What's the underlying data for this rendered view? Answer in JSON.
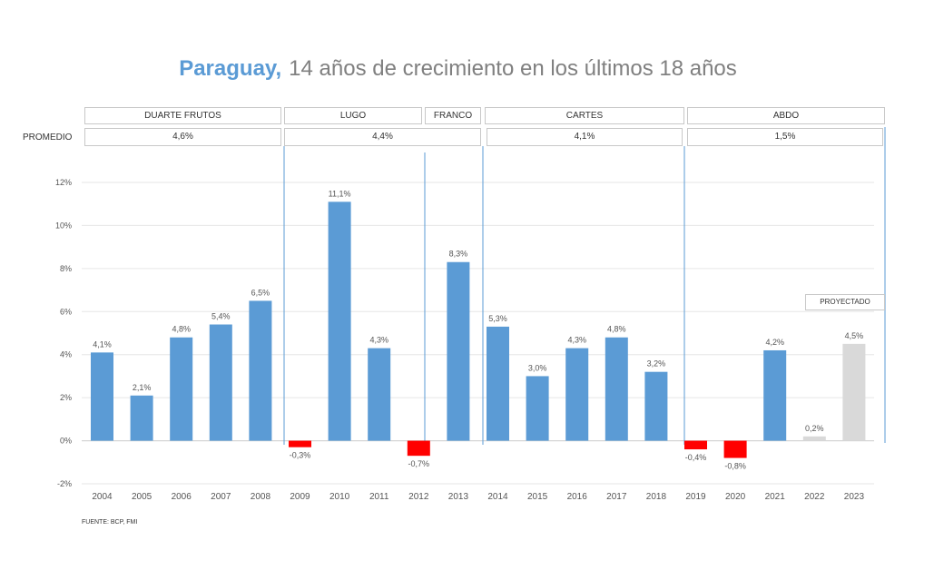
{
  "title": {
    "country": "Paraguay,",
    "rest": "14 años de crecimiento en los últimos 18 años"
  },
  "promedio_label": "PROMEDIO",
  "governments": [
    {
      "name": "DUARTE FRUTOS",
      "avg": "4,6%"
    },
    {
      "name": "LUGO",
      "avg": "4,4%"
    },
    {
      "name": "FRANCO",
      "avg": ""
    },
    {
      "name": "CARTES",
      "avg": "4,1%"
    },
    {
      "name": "ABDO",
      "avg": "1,5%"
    }
  ],
  "projected_label": "PROYECTADO",
  "source": "FUENTE: BCP, FMI",
  "colors": {
    "positive": "#5b9bd5",
    "negative": "#ff0000",
    "projected": "#d9d9d9",
    "title_accent": "#5b9bd5"
  },
  "chart_data": {
    "type": "bar",
    "categories": [
      "2004",
      "2005",
      "2006",
      "2007",
      "2008",
      "2009",
      "2010",
      "2011",
      "2012",
      "2013",
      "2014",
      "2015",
      "2016",
      "2017",
      "2018",
      "2019",
      "2020",
      "2021",
      "2022",
      "2023"
    ],
    "values": [
      4.1,
      2.1,
      4.8,
      5.4,
      6.5,
      -0.3,
      11.1,
      4.3,
      -0.7,
      8.3,
      5.3,
      3.0,
      4.3,
      4.8,
      3.2,
      -0.4,
      -0.8,
      4.2,
      0.2,
      4.5
    ],
    "labels": [
      "4,1%",
      "2,1%",
      "4,8%",
      "5,4%",
      "6,5%",
      "-0,3%",
      "11,1%",
      "4,3%",
      "-0,7%",
      "8,3%",
      "5,3%",
      "3,0%",
      "4,3%",
      "4,8%",
      "3,2%",
      "-0,4%",
      "-0,8%",
      "4,2%",
      "0,2%",
      "4,5%"
    ],
    "projected": [
      false,
      false,
      false,
      false,
      false,
      false,
      false,
      false,
      false,
      false,
      false,
      false,
      false,
      false,
      false,
      false,
      false,
      false,
      true,
      true
    ],
    "ylim": [
      -2,
      12
    ],
    "yticks": [
      "-2%",
      "0%",
      "2%",
      "4%",
      "6%",
      "8%",
      "10%",
      "12%"
    ],
    "ytick_values": [
      -2,
      0,
      2,
      4,
      6,
      8,
      10,
      12
    ],
    "grid": true,
    "xlabel": "",
    "ylabel": ""
  }
}
